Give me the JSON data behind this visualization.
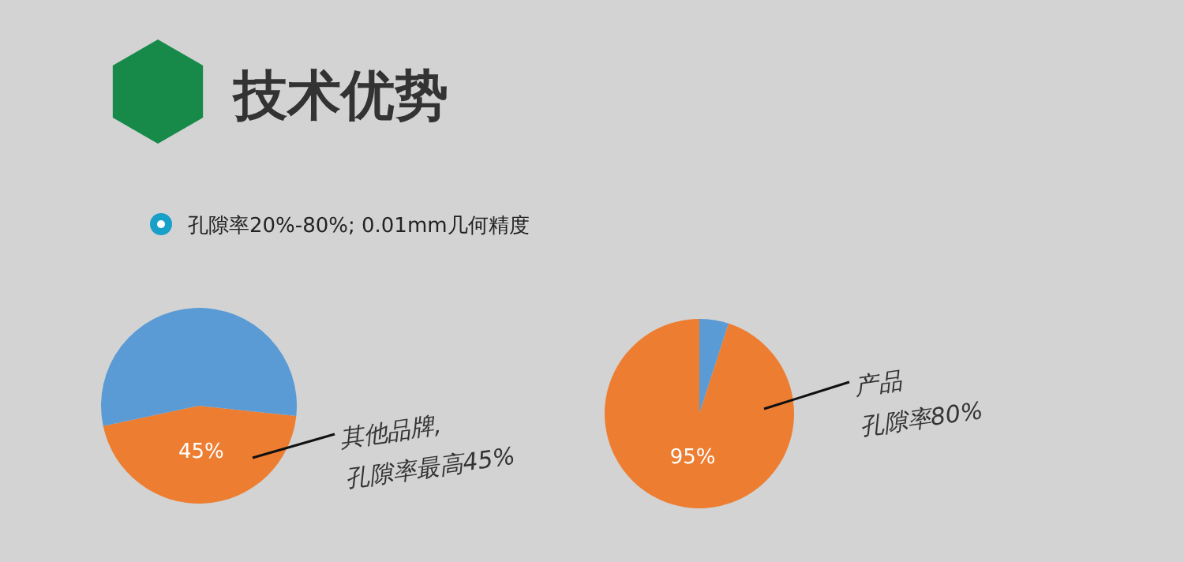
{
  "chart_data": [
    {
      "type": "pie",
      "title": "技术优势",
      "subtitle": "孔隙率20%-80%; 0.01mm几何精度",
      "categories": [
        null,
        null
      ],
      "values": [
        45,
        55
      ],
      "colors": [
        "#ed7d31",
        "#5b9bd5"
      ],
      "value_labels": [
        "45%",
        null
      ],
      "annotations": [
        "其他品牌,",
        "孔隙率最高45%"
      ]
    },
    {
      "type": "pie",
      "categories": [
        null,
        null
      ],
      "values": [
        5,
        95
      ],
      "colors": [
        "#5b9bd5",
        "#ed7d31"
      ],
      "value_labels": [
        null,
        "95%"
      ],
      "annotations": [
        "产品",
        "孔隙率80%"
      ]
    }
  ]
}
